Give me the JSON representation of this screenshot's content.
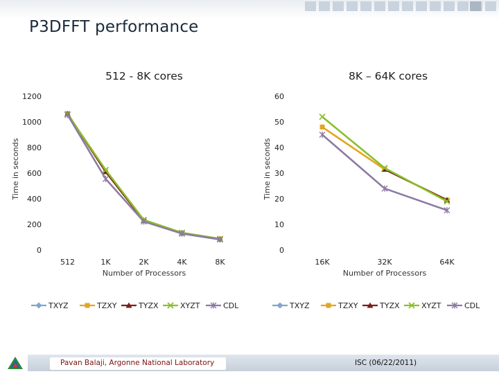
{
  "slide": {
    "title": "P3DFFT performance",
    "footer_left": "Pavan Balaji, Argonne National Laboratory",
    "footer_right": "ISC (06/22/2011)"
  },
  "colors": {
    "TXYZ": "#7fa6cc",
    "TZXY": "#e3a51f",
    "TYZX": "#7a1e1e",
    "XYZT": "#8bbf2a",
    "CDL": "#8d7aa3"
  },
  "chart_data": [
    {
      "type": "line",
      "title": "512 - 8K cores",
      "xlabel": "Number of Processors",
      "ylabel": "Time in seconds",
      "categories": [
        "512",
        "1K",
        "2K",
        "4K",
        "8K"
      ],
      "ylim": [
        0,
        1200
      ],
      "yticks": [
        0,
        200,
        400,
        600,
        800,
        1000,
        1200
      ],
      "grid": false,
      "legend": "bottom",
      "series": [
        {
          "name": "TXYZ",
          "marker": "diamond",
          "values": [
            null,
            null,
            null,
            null,
            null
          ]
        },
        {
          "name": "TZXY",
          "marker": "square",
          "values": [
            1065,
            610,
            228,
            132,
            85
          ]
        },
        {
          "name": "TYZX",
          "marker": "triangle",
          "values": [
            1062,
            612,
            230,
            133,
            86
          ]
        },
        {
          "name": "XYZT",
          "marker": "x",
          "values": [
            1060,
            625,
            235,
            135,
            88
          ]
        },
        {
          "name": "CDL",
          "marker": "star",
          "values": [
            1055,
            555,
            222,
            128,
            82
          ]
        }
      ]
    },
    {
      "type": "line",
      "title": "8K – 64K cores",
      "xlabel": "Number of Processors",
      "ylabel": "Time in seconds",
      "categories": [
        "16K",
        "32K",
        "64K"
      ],
      "ylim": [
        0,
        60
      ],
      "yticks": [
        0,
        10,
        20,
        30,
        40,
        50,
        60
      ],
      "grid": false,
      "legend": "bottom",
      "series": [
        {
          "name": "TXYZ",
          "marker": "diamond",
          "values": [
            null,
            null,
            null
          ]
        },
        {
          "name": "TZXY",
          "marker": "square",
          "values": [
            48,
            31.5,
            19.5
          ]
        },
        {
          "name": "TYZX",
          "marker": "triangle",
          "values": [
            null,
            31.5,
            19.5
          ]
        },
        {
          "name": "XYZT",
          "marker": "x",
          "values": [
            52,
            32,
            19
          ]
        },
        {
          "name": "CDL",
          "marker": "star",
          "values": [
            45,
            24,
            15.5
          ]
        }
      ]
    }
  ]
}
